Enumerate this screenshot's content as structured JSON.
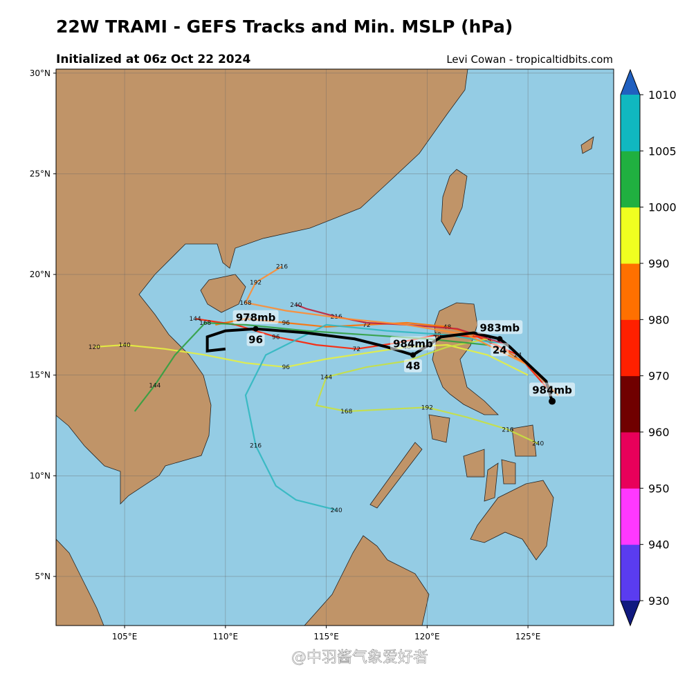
{
  "header": {
    "title": "22W TRAMI - GEFS Tracks and Min. MSLP (hPa)",
    "subtitle": "Initialized at 06z Oct 22 2024",
    "credit": "Levi Cowan - tropicaltidbits.com"
  },
  "watermark": "@中羽酱气象爱好者",
  "map": {
    "xlim": [
      101.6,
      129.25
    ],
    "ylim": [
      2.56,
      30.2
    ],
    "xticks": [
      {
        "value": 105,
        "label": "105°E"
      },
      {
        "value": 110,
        "label": "110°E"
      },
      {
        "value": 115,
        "label": "115°E"
      },
      {
        "value": 120,
        "label": "120°E"
      },
      {
        "value": 125,
        "label": "125°E"
      }
    ],
    "yticks": [
      {
        "value": 5,
        "label": "5°N"
      },
      {
        "value": 10,
        "label": "10°N"
      },
      {
        "value": 15,
        "label": "15°N"
      },
      {
        "value": 20,
        "label": "20°N"
      },
      {
        "value": 25,
        "label": "25°N"
      },
      {
        "value": 30,
        "label": "30°N"
      }
    ],
    "grid": true,
    "members": [
      {
        "color": "#ff7000",
        "lon": [
          126.5,
          125,
          123,
          121,
          119,
          117,
          115,
          113,
          111,
          109.5
        ],
        "lat": [
          14,
          15.5,
          16.8,
          17.4,
          17.6,
          17.5,
          17.4,
          17.6,
          17.8,
          17.5
        ],
        "hours": [
          null,
          null,
          24,
          48,
          null,
          72,
          null,
          96,
          120,
          null
        ]
      },
      {
        "color": "#ff2000",
        "lon": [
          126,
          124.5,
          122.5,
          120.5,
          118.5,
          116.5,
          114.5,
          112.5,
          110.5,
          108.5
        ],
        "lat": [
          14.3,
          16,
          16.9,
          17,
          16.6,
          16.3,
          16.5,
          16.9,
          17.5,
          17.8
        ],
        "hours": [
          null,
          24,
          null,
          48,
          null,
          72,
          null,
          96,
          null,
          144
        ]
      },
      {
        "color": "#e6f040",
        "lon": [
          125,
          123,
          121,
          119,
          117,
          115,
          113,
          111,
          109,
          107,
          105,
          103.5
        ],
        "lat": [
          15,
          16,
          16.5,
          16.4,
          16.1,
          15.8,
          15.4,
          15.6,
          16,
          16.3,
          16.5,
          16.4
        ],
        "hours": [
          null,
          null,
          null,
          48,
          null,
          null,
          96,
          null,
          null,
          null,
          140,
          120
        ]
      },
      {
        "color": "#30b8c0",
        "lon": [
          124,
          121,
          118,
          115,
          112,
          111,
          111.5,
          112.5,
          113.5,
          115.5
        ],
        "lat": [
          16.5,
          17,
          17.2,
          17.5,
          16,
          14,
          11.5,
          9.5,
          8.8,
          8.3
        ],
        "hours": [
          null,
          null,
          null,
          null,
          null,
          null,
          216,
          null,
          null,
          240
        ]
      },
      {
        "color": "#c8e040",
        "lon": [
          123,
          121,
          119,
          117,
          115,
          114.5,
          116,
          118,
          120,
          122,
          124,
          125.5
        ],
        "lat": [
          16.8,
          16.4,
          15.7,
          15.4,
          14.9,
          13.5,
          13.2,
          13.3,
          13.4,
          12.9,
          12.3,
          11.6
        ],
        "hours": [
          null,
          null,
          null,
          null,
          144,
          null,
          168,
          null,
          192,
          null,
          216,
          240
        ]
      },
      {
        "color": "#c0203c",
        "lon": [
          124,
          121.5,
          119,
          117,
          115.5,
          114,
          113.5
        ],
        "lat": [
          16.5,
          17.3,
          17.5,
          17.6,
          17.9,
          18.3,
          18.5
        ],
        "hours": [
          null,
          null,
          null,
          null,
          216,
          null,
          240
        ]
      },
      {
        "color": "#30a040",
        "lon": [
          123,
          120,
          117,
          114,
          111,
          109,
          107.5,
          106.5,
          105.5
        ],
        "lat": [
          16.5,
          16.8,
          17,
          17.2,
          17.5,
          17.6,
          16,
          14.5,
          13.2
        ],
        "hours": [
          null,
          null,
          null,
          null,
          null,
          168,
          null,
          144,
          null
        ]
      },
      {
        "color": "#ff8c30",
        "lon": [
          125,
          122,
          119,
          116,
          113,
          111,
          111.5,
          112.8
        ],
        "lat": [
          15.5,
          17,
          17.5,
          17.8,
          18.2,
          18.6,
          19.6,
          20.4
        ],
        "hours": [
          null,
          null,
          null,
          null,
          null,
          168,
          192,
          216
        ]
      }
    ],
    "mean_track": {
      "color": "#000000",
      "lon": [
        126.2,
        125.9,
        124.1,
        123.6,
        122.3,
        120.7,
        119.3,
        118.0,
        116.4,
        114.0,
        111.5,
        110.0,
        109.1,
        109.1,
        110.0
      ],
      "lat": [
        13.7,
        14.7,
        16.4,
        16.8,
        17.1,
        16.9,
        16.0,
        16.4,
        16.8,
        17.1,
        17.3,
        17.2,
        16.9,
        16.2,
        16.3
      ],
      "pressure_labels": [
        "984mb",
        null,
        null,
        "983mb",
        null,
        null,
        "984mb",
        null,
        null,
        null,
        "978mb",
        null,
        null,
        null,
        null
      ],
      "hours": [
        null,
        null,
        null,
        24,
        null,
        null,
        48,
        null,
        null,
        null,
        96,
        null,
        null,
        null,
        null
      ]
    }
  },
  "colorbar": {
    "ticks": [
      930,
      940,
      950,
      960,
      970,
      980,
      990,
      1000,
      1005,
      1010
    ],
    "colors": [
      "#5a3cf0",
      "#ff38ff",
      "#e8005a",
      "#700000",
      "#ff2000",
      "#ff7000",
      "#f0ff20",
      "#20b040",
      "#10b8c0"
    ],
    "under_color": "#101a80",
    "over_color": "#2060c0"
  }
}
